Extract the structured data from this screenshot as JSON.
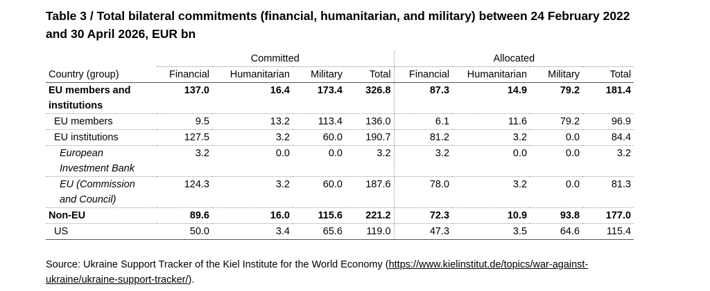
{
  "title": "Table 3 / Total bilateral commitments (financial, humanitarian, and military) between 24 February 2022 and 30 April 2026, EUR bn",
  "groups": {
    "committed": "Committed",
    "allocated": "Allocated"
  },
  "columns": {
    "country": "Country (group)",
    "financial_c": "Financial",
    "humanitarian_c": "Humanitarian",
    "military_c": "Military",
    "total_c": "Total",
    "financial_a": "Financial",
    "humanitarian_a": "Humanitarian",
    "military_a": "Military",
    "total_a": "Total"
  },
  "rows": [
    {
      "label": "EU members and institutions",
      "values": [
        "137.0",
        "16.4",
        "173.4",
        "326.8",
        "87.3",
        "14.9",
        "79.2",
        "181.4"
      ]
    },
    {
      "label": "EU members",
      "values": [
        "9.5",
        "13.2",
        "113.4",
        "136.0",
        "6.1",
        "11.6",
        "79.2",
        "96.9"
      ]
    },
    {
      "label": "EU institutions",
      "values": [
        "127.5",
        "3.2",
        "60.0",
        "190.7",
        "81.2",
        "3.2",
        "0.0",
        "84.4"
      ]
    },
    {
      "label": "European Investment Bank",
      "values": [
        "3.2",
        "0.0",
        "0.0",
        "3.2",
        "3.2",
        "0.0",
        "0.0",
        "3.2"
      ]
    },
    {
      "label": "EU (Commission and Council)",
      "values": [
        "124.3",
        "3.2",
        "60.0",
        "187.6",
        "78.0",
        "3.2",
        "0.0",
        "81.3"
      ]
    },
    {
      "label": "Non-EU",
      "values": [
        "89.6",
        "16.0",
        "115.6",
        "221.2",
        "72.3",
        "10.9",
        "93.8",
        "177.0"
      ]
    },
    {
      "label": "US",
      "values": [
        "50.0",
        "3.4",
        "65.6",
        "119.0",
        "47.3",
        "3.5",
        "64.6",
        "115.4"
      ]
    }
  ],
  "source": {
    "prefix": "Source: Ukraine Support Tracker of the Kiel Institute for the World Economy (",
    "link_text": "https://www.kielinstitut.de/topics/war-against-ukraine/ukraine-support-tracker/",
    "suffix": ")."
  }
}
